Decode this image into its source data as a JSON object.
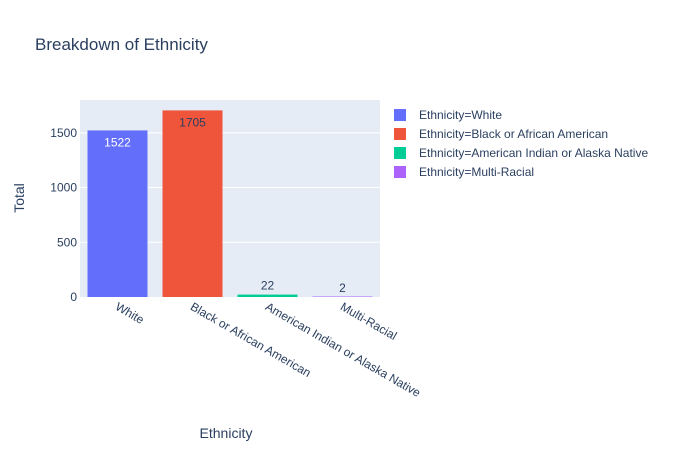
{
  "chart_data": {
    "type": "bar",
    "title": "Breakdown of Ethnicity",
    "xlabel": "Ethnicity",
    "ylabel": "Total",
    "ylim": [
      0,
      1800
    ],
    "yticks": [
      0,
      500,
      1000,
      1500
    ],
    "grid": true,
    "legend_position": "top-right",
    "categories": [
      "White",
      "Black or African American",
      "American Indian or Alaska Native",
      "Multi-Racial"
    ],
    "series": [
      {
        "name": "Ethnicity=White",
        "category": "White",
        "value": 1522,
        "label": "1522",
        "color": "#636efa"
      },
      {
        "name": "Ethnicity=Black or African American",
        "category": "Black or African American",
        "value": 1705,
        "label": "1705",
        "color": "#ef553b"
      },
      {
        "name": "Ethnicity=American Indian or Alaska Native",
        "category": "American Indian or Alaska Native",
        "value": 22,
        "label": "22",
        "color": "#00cc96"
      },
      {
        "name": "Ethnicity=Multi-Racial",
        "category": "Multi-Racial",
        "value": 2,
        "label": "2",
        "color": "#ab63fa"
      }
    ]
  }
}
